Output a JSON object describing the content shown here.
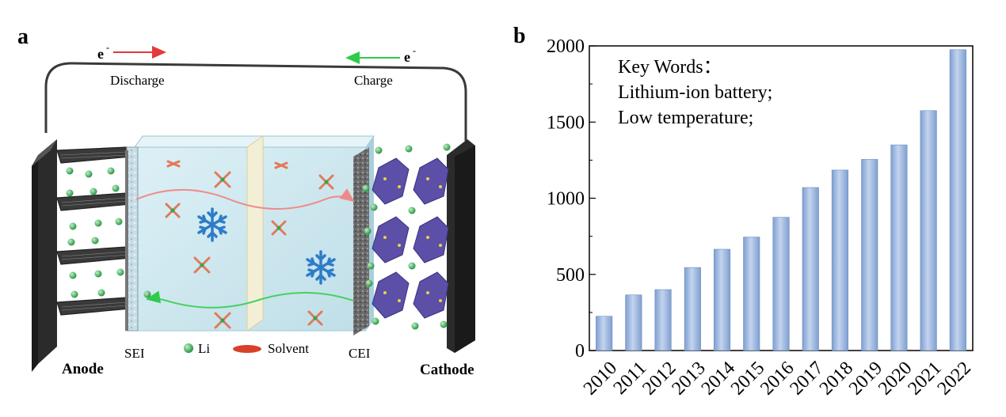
{
  "panel_a": {
    "letter": "a",
    "electron_left": "e",
    "electron_right": "e",
    "electron_sup": "-",
    "discharge": "Discharge",
    "charge": "Charge",
    "sei": "SEI",
    "li_legend": "Li",
    "solvent_legend": "Solvent",
    "cei": "CEI",
    "anode": "Anode",
    "cathode": "Cathode",
    "colors": {
      "electrode": "#2b2b2b",
      "electrolyte": "#c9e6ee",
      "li_ion": "#2fa84a",
      "solvent": "#d8402a",
      "cathode_crystal": "#5b4fa8",
      "snowflake": "#2e7cc7",
      "discharge_arrow": "#e23a3a",
      "charge_arrow": "#2ecb4a"
    },
    "icons": [
      "snowflake-icon",
      "li-ion-icon",
      "solvent-icon"
    ]
  },
  "panel_b": {
    "letter": "b",
    "annotation": [
      "Key Words：",
      "Lithium-ion battery;",
      "Low temperature;"
    ]
  },
  "chart_data": {
    "type": "bar",
    "categories": [
      "2010",
      "2011",
      "2012",
      "2013",
      "2014",
      "2015",
      "2016",
      "2017",
      "2018",
      "2019",
      "2020",
      "2021",
      "2022"
    ],
    "values": [
      225,
      365,
      400,
      545,
      665,
      745,
      875,
      1070,
      1185,
      1255,
      1350,
      1575,
      1975
    ],
    "ylim": [
      0,
      2000
    ],
    "yticks": [
      "0",
      "500",
      "1000",
      "1500",
      "2000"
    ],
    "xlabel": "",
    "ylabel": "",
    "grid": false,
    "bar_color": "#8fb0dc"
  }
}
